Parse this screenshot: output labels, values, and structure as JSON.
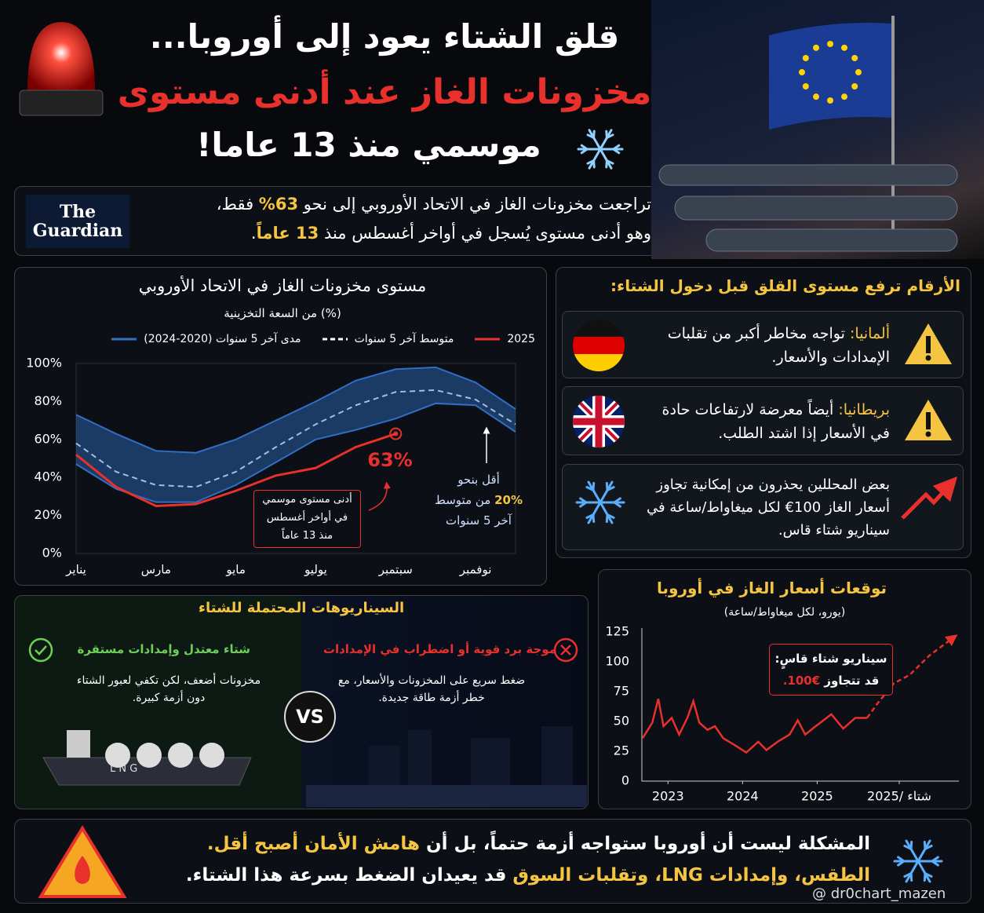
{
  "header": {
    "title_line1": "قلق الشتاء يعود إلى أوروبا...",
    "title_line2": "مخزونات الغاز عند أدنى مستوى",
    "title_line3": "موسمي منذ 13 عاما!"
  },
  "source": {
    "logo_line1": "The",
    "logo_line2": "Guardian",
    "line1": [
      "تراجعت مخزونات الغاز في الاتحاد الأوروبي إلى نحو ",
      "63%",
      " فقط،"
    ],
    "line2": [
      "وهو أدنى مستوى يُسجل في أواخر أغسطس منذ ",
      "13 عاماً",
      "."
    ]
  },
  "chart_data": [
    {
      "type": "line",
      "title": "مستوى مخزونات الغاز في الاتحاد الأوروبي",
      "subtitle": "(%) من السعة التخزينية",
      "categories": [
        "يناير",
        null,
        "مارس",
        null,
        "مايو",
        null,
        "يوليو",
        null,
        "سبتمبر",
        null,
        "نوفمبر",
        null
      ],
      "series": [
        {
          "name": "2025",
          "color": "#e8302c",
          "values": [
            52,
            35,
            25,
            26,
            33,
            41,
            45,
            56,
            63,
            null,
            null,
            null
          ]
        },
        {
          "name": "متوسط آخر 5 سنوات",
          "color": "#ffffff",
          "dash": true,
          "values": [
            58,
            43,
            36,
            35,
            43,
            56,
            68,
            78,
            85,
            86,
            81,
            68
          ]
        },
        {
          "name": "مدى آخر 5 سنوات (2020-2024)",
          "color": "#2f6fc6",
          "low": [
            47,
            34,
            27,
            27,
            36,
            48,
            60,
            65,
            71,
            79,
            78,
            64
          ],
          "high": [
            73,
            63,
            54,
            53,
            60,
            70,
            80,
            91,
            97,
            98,
            90,
            76
          ]
        }
      ],
      "ylim": [
        0,
        100
      ],
      "yticks": [
        {
          "value": 0,
          "label": "0%"
        },
        {
          "value": 20,
          "label": "20%"
        },
        {
          "value": 40,
          "label": "40%"
        },
        {
          "value": 60,
          "label": "60%"
        },
        {
          "value": 80,
          "label": "80%"
        },
        {
          "value": 100,
          "label": "100%"
        }
      ],
      "grid": false,
      "end_label": "63%",
      "low_note": [
        "أدنى مستوى موسمي",
        "في أواخر أغسطس",
        "منذ 13 عاماً"
      ],
      "gap_note": [
        "أقل بنحو",
        "20%",
        " من متوسط",
        "آخر 5 سنوات"
      ]
    },
    {
      "type": "line",
      "title": "توقعات أسعار الغاز في أوروبا",
      "subtitle": "(يورو، لكل ميغاواط/ساعة)",
      "series": [
        {
          "color": "#e8302c",
          "x": [
            2022.66,
            2022.79,
            2022.87,
            2022.94,
            2023.05,
            2023.15,
            2023.26,
            2023.34,
            2023.42,
            2023.53,
            2023.63,
            2023.74,
            2023.9,
            2024.05,
            2024.21,
            2024.32,
            2024.47,
            2024.63,
            2024.74,
            2024.84,
            2024.98,
            2025.19,
            2025.35,
            2025.51,
            2025.67
          ],
          "values": [
            36,
            49,
            69,
            46,
            53,
            39,
            53,
            67,
            49,
            43,
            46,
            36,
            30,
            24,
            33,
            26,
            33,
            39,
            51,
            39,
            46,
            56,
            44,
            53,
            53
          ]
        },
        {
          "color": "#e8302c",
          "dash": true,
          "x": [
            2025.67,
            2025.82,
            2026.03,
            2026.24,
            2026.5,
            2026.82
          ],
          "values": [
            53,
            66,
            82,
            89,
            105,
            120
          ]
        }
      ],
      "xlim": [
        2022.65,
        2026.9
      ],
      "xticks": [
        2023,
        2024,
        2025,
        {
          "value": 2026.1,
          "label": "شتاء /2025"
        }
      ],
      "ylim": [
        0,
        125
      ],
      "yticks": [
        0,
        25,
        50,
        75,
        100,
        125
      ],
      "grid": false,
      "note": [
        "سيناريو شتاء قاسٍ:",
        "قد تتجاوز ",
        "€100."
      ]
    }
  ],
  "risks": {
    "title": "الأرقام ترفع مستوى القلق قبل دخول الشتاء:",
    "items": [
      {
        "country": "ألمانيا:",
        "text": " تواجه مخاطر أكبر من تقلبات الإمدادات والأسعار."
      },
      {
        "country": "بريطانيا:",
        "text": " أيضاً معرضة لارتفاعات حادة في الأسعار إذا اشتد الطلب."
      },
      {
        "text": "بعض المحللين يحذرون من إمكانية تجاوز أسعار الغاز 100€ لكل ميغاواط/ساعة في سيناريو شتاء قاس."
      }
    ]
  },
  "scenarios": {
    "title": "السيناريوهات المحتملة للشتاء",
    "vs": "VS",
    "mild": {
      "title": "شتاء معتدل وإمدادات مستقرة",
      "text": "مخزونات أضعف، لكن تكفي لعبور الشتاء دون أزمة كبيرة.",
      "ship_label": "L N G"
    },
    "severe": {
      "title": "موجة برد قوية أو اضطراب في الإمدادات",
      "text": "ضغط سريع على المخزونات والأسعار، مع خطر أزمة طاقة جديدة."
    }
  },
  "footer": {
    "line1": [
      "المشكلة ليست أن أوروبا ستواجه أزمة حتماً، بل أن ",
      "هامش الأمان أصبح أقل."
    ],
    "line2": [
      "الطقس، وإمدادات LNG، وتقلبات السوق",
      " قد يعيدان الضغط بسرعة هذا الشتاء."
    ]
  },
  "watermark": "@ dr0chart_mazen"
}
